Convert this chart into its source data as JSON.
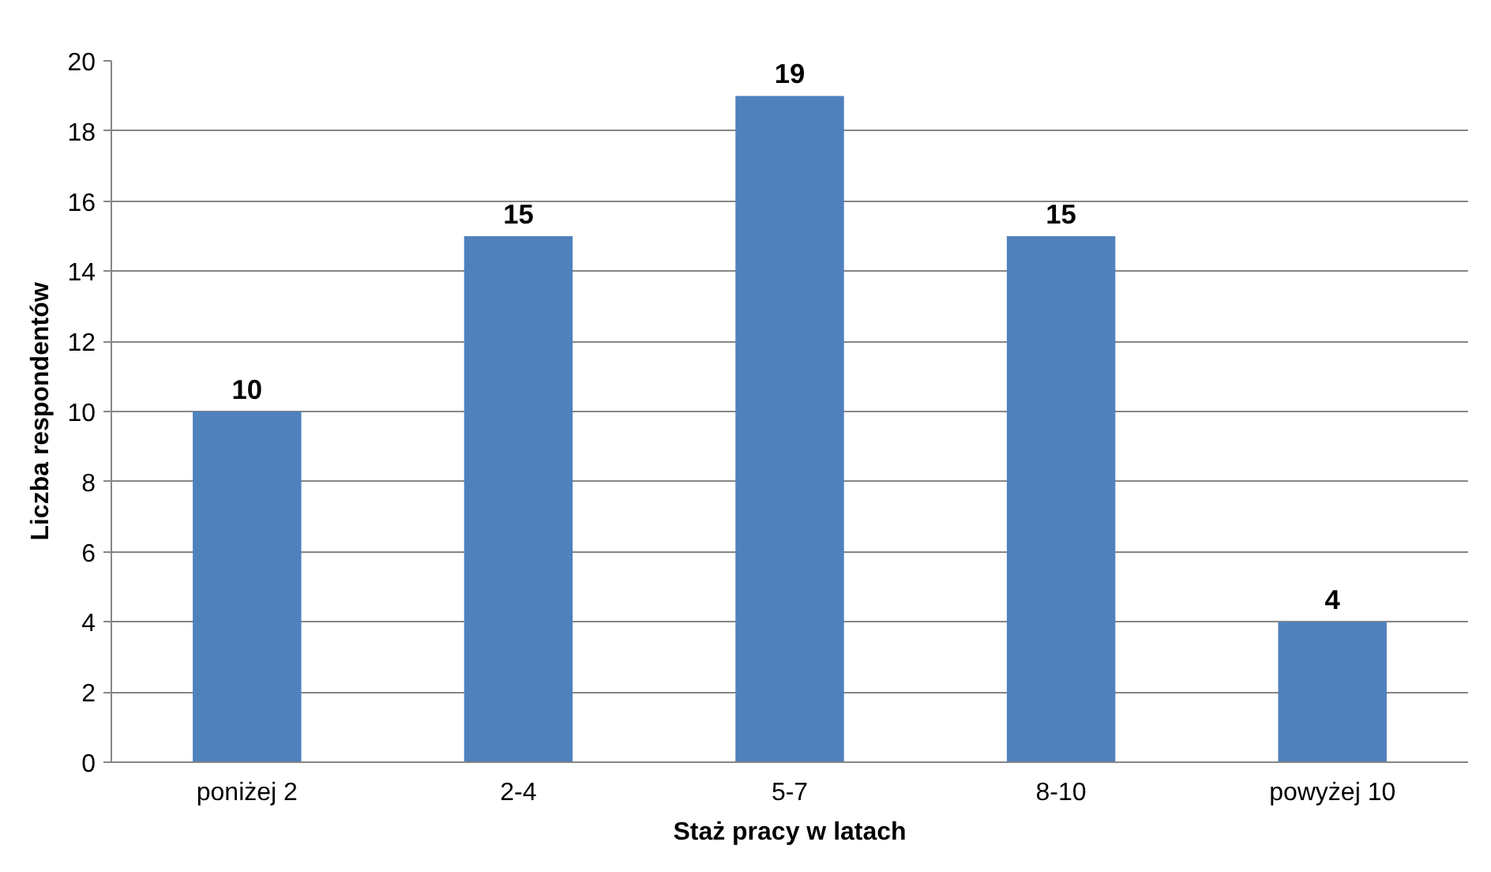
{
  "chart_data": {
    "type": "bar",
    "xlabel": "Staż pracy w latach",
    "ylabel": "Liczba respondentów",
    "categories": [
      "poniżej 2",
      "2-4",
      "5-7",
      "8-10",
      "powyżej 10"
    ],
    "values": [
      10,
      15,
      19,
      15,
      4
    ],
    "color": "#4f81bd",
    "ylim": [
      0,
      20
    ],
    "yticks": [
      0,
      2,
      4,
      6,
      8,
      10,
      12,
      14,
      16,
      18,
      20
    ],
    "grid": "y",
    "data_labels": true
  }
}
